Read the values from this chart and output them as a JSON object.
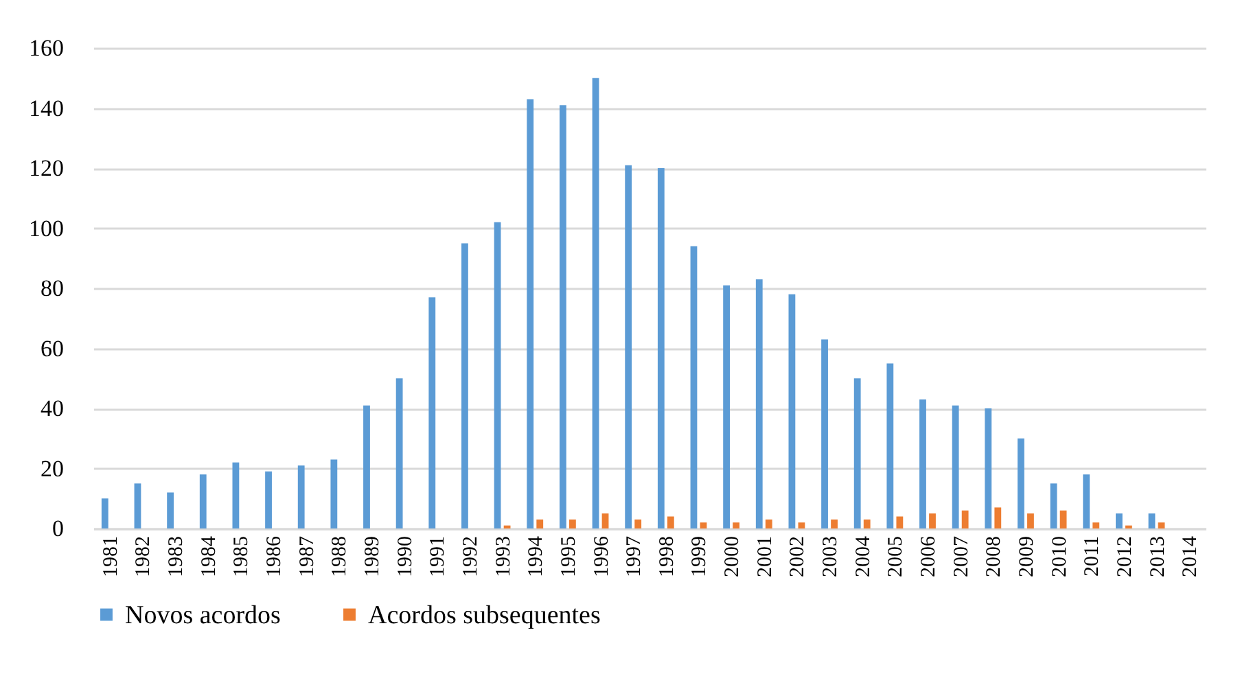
{
  "chart_data": {
    "type": "bar",
    "categories": [
      "1981",
      "1982",
      "1983",
      "1984",
      "1985",
      "1986",
      "1987",
      "1988",
      "1989",
      "1990",
      "1991",
      "1992",
      "1993",
      "1994",
      "1995",
      "1996",
      "1997",
      "1998",
      "1999",
      "2000",
      "2001",
      "2002",
      "2003",
      "2004",
      "2005",
      "2006",
      "2007",
      "2008",
      "2009",
      "2010",
      "2011",
      "2012",
      "2013",
      "2014"
    ],
    "series": [
      {
        "name": "Novos acordos",
        "color": "#5b9bd5",
        "values": [
          10,
          15,
          12,
          18,
          22,
          19,
          21,
          23,
          41,
          50,
          77,
          95,
          102,
          143,
          141,
          150,
          121,
          120,
          94,
          81,
          83,
          78,
          63,
          50,
          55,
          43,
          41,
          40,
          30,
          15,
          18,
          5,
          5,
          0
        ]
      },
      {
        "name": "Acordos subsequentes",
        "color": "#ed7d31",
        "values": [
          0,
          0,
          0,
          0,
          0,
          0,
          0,
          0,
          0,
          0,
          0,
          0,
          1,
          3,
          3,
          5,
          3,
          4,
          2,
          2,
          3,
          2,
          3,
          3,
          4,
          5,
          6,
          7,
          5,
          6,
          2,
          1,
          2,
          0
        ]
      }
    ],
    "ylim": [
      0,
      160
    ],
    "yticks": [
      0,
      20,
      40,
      60,
      80,
      100,
      120,
      140,
      160
    ],
    "grid": "y",
    "legend": "bottom"
  }
}
